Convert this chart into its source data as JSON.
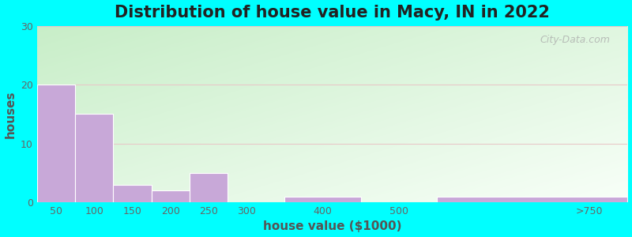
{
  "title": "Distribution of house value in Macy, IN in 2022",
  "xlabel": "house value ($1000)",
  "ylabel": "houses",
  "bar_left_edges": [
    25,
    75,
    125,
    175,
    225,
    350,
    550
  ],
  "bar_widths": [
    50,
    50,
    50,
    50,
    50,
    100,
    250
  ],
  "bar_values": [
    20,
    15,
    3,
    2,
    5,
    1,
    1
  ],
  "xtick_positions": [
    50,
    100,
    150,
    200,
    250,
    300,
    400,
    500,
    750
  ],
  "xtick_labels": [
    "50",
    "100",
    "150",
    "200",
    "250",
    "300",
    "400",
    "500",
    ">750"
  ],
  "bar_color": "#c8a8d8",
  "bar_edge_color": "#ffffff",
  "ylim": [
    0,
    30
  ],
  "xlim": [
    25,
    800
  ],
  "yticks": [
    0,
    10,
    20,
    30
  ],
  "bg_color_topleft": "#c8eec8",
  "bg_color_bottomright": "#f8fff8",
  "outer_background": "#00ffff",
  "title_fontsize": 15,
  "axis_label_fontsize": 11,
  "tick_fontsize": 9,
  "watermark_text": "City-Data.com"
}
